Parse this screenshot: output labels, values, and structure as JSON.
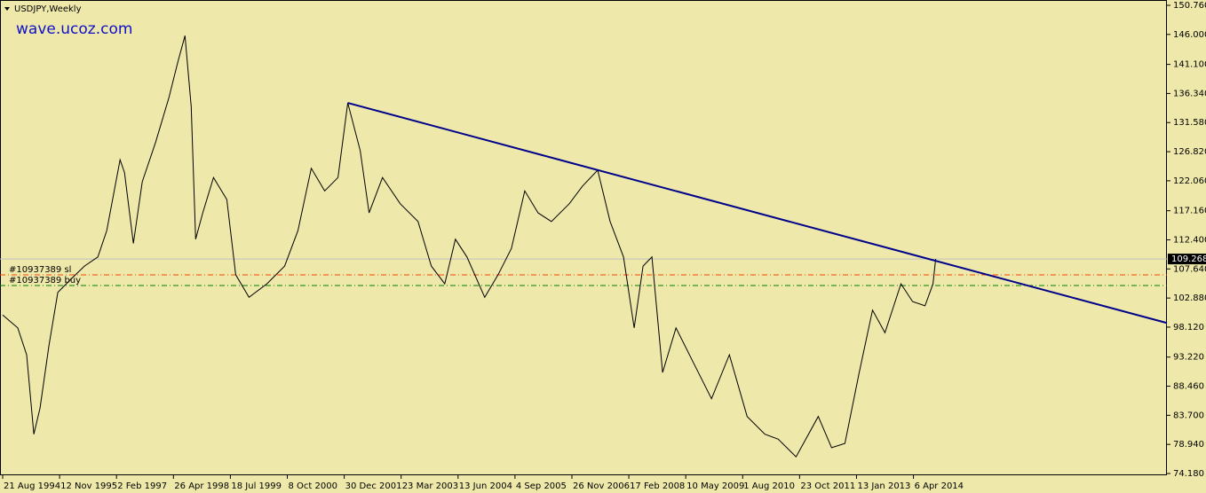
{
  "chart_data": {
    "type": "line",
    "title": "USDJPY,Weekly",
    "watermark": "wave.ucoz.com",
    "color": "#000000",
    "x": [
      "1994-08-21",
      "1994-12-18",
      "1995-02-26",
      "1995-04-23",
      "1995-06-11",
      "1995-08-20",
      "1995-10-29",
      "1996-02-11",
      "1996-05-26",
      "1996-09-08",
      "1996-11-17",
      "1997-03-02",
      "1997-04-06",
      "1997-06-15",
      "1997-08-24",
      "1997-12-07",
      "1998-03-22",
      "1998-05-31",
      "1998-07-26",
      "1998-09-13",
      "1998-10-18",
      "1998-12-13",
      "1999-03-07",
      "1999-06-20",
      "1999-08-29",
      "1999-12-12",
      "2000-04-30",
      "2000-09-17",
      "2000-12-31",
      "2001-04-15",
      "2001-07-29",
      "2001-11-11",
      "2002-01-27",
      "2002-05-05",
      "2002-07-14",
      "2002-10-27",
      "2003-03-16",
      "2003-08-03",
      "2003-11-16",
      "2004-02-29",
      "2004-05-23",
      "2004-08-22",
      "2005-01-09",
      "2005-04-24",
      "2005-08-07",
      "2005-11-20",
      "2006-03-05",
      "2006-06-18",
      "2006-11-05",
      "2007-02-18",
      "2007-06-17",
      "2007-09-23",
      "2008-01-06",
      "2008-03-30",
      "2008-06-08",
      "2008-08-17",
      "2008-11-09",
      "2009-02-22",
      "2009-07-12",
      "2009-11-29",
      "2010-04-18",
      "2010-09-05",
      "2011-01-23",
      "2011-05-08",
      "2011-09-25",
      "2012-03-18",
      "2012-07-01",
      "2012-10-14",
      "2013-02-03",
      "2013-05-19",
      "2013-08-25",
      "2013-12-29",
      "2014-03-30",
      "2014-07-06",
      "2014-09-07",
      "2014-09-28"
    ],
    "values": [
      100.1,
      98.0,
      93.6,
      80.6,
      84.9,
      95.1,
      103.8,
      106.0,
      108.1,
      109.6,
      113.9,
      125.5,
      123.4,
      111.8,
      121.9,
      128.4,
      135.7,
      141.5,
      145.8,
      134.2,
      112.5,
      116.8,
      122.6,
      119.0,
      106.7,
      103.0,
      105.2,
      108.1,
      113.9,
      124.1,
      120.4,
      122.6,
      134.8,
      127.0,
      116.8,
      122.6,
      118.3,
      115.4,
      108.1,
      105.2,
      112.5,
      109.6,
      103.0,
      106.7,
      111.0,
      120.4,
      116.8,
      115.4,
      118.3,
      121.2,
      123.8,
      115.4,
      109.6,
      98.0,
      108.1,
      109.6,
      90.7,
      98.0,
      92.2,
      86.4,
      93.6,
      83.5,
      80.6,
      79.8,
      76.9,
      83.5,
      78.4,
      79.1,
      90.7,
      100.9,
      97.2,
      105.2,
      102.3,
      101.6,
      105.2,
      109.268
    ],
    "xlim": [
      "1994-07-31",
      "2019-09-22"
    ],
    "xticks": [
      {
        "value": "1994-08-21",
        "label": "21 Aug 1994"
      },
      {
        "value": "1995-11-12",
        "label": "12 Nov 1995"
      },
      {
        "value": "1997-02-02",
        "label": "2 Feb 1997"
      },
      {
        "value": "1998-04-26",
        "label": "26 Apr 1998"
      },
      {
        "value": "1999-07-18",
        "label": "18 Jul 1999"
      },
      {
        "value": "2000-10-08",
        "label": "8 Oct 2000"
      },
      {
        "value": "2001-12-30",
        "label": "30 Dec 2001"
      },
      {
        "value": "2003-03-23",
        "label": "23 Mar 2003"
      },
      {
        "value": "2004-06-13",
        "label": "13 Jun 2004"
      },
      {
        "value": "2005-09-04",
        "label": "4 Sep 2005"
      },
      {
        "value": "2006-11-26",
        "label": "26 Nov 2006"
      },
      {
        "value": "2008-02-17",
        "label": "17 Feb 2008"
      },
      {
        "value": "2009-05-10",
        "label": "10 May 2009"
      },
      {
        "value": "2010-08-01",
        "label": "1 Aug 2010"
      },
      {
        "value": "2011-10-23",
        "label": "23 Oct 2011"
      },
      {
        "value": "2013-01-13",
        "label": "13 Jan 2013"
      },
      {
        "value": "2014-04-06",
        "label": "6 Apr 2014"
      }
    ],
    "ylim": [
      74.18,
      150.76
    ],
    "yticks": [
      {
        "value": 150.76,
        "label": "150.760"
      },
      {
        "value": 146,
        "label": "146.000"
      },
      {
        "value": 141.1,
        "label": "141.100"
      },
      {
        "value": 136.34,
        "label": "136.340"
      },
      {
        "value": 131.58,
        "label": "131.580"
      },
      {
        "value": 126.82,
        "label": "126.820"
      },
      {
        "value": 122.06,
        "label": "122.060"
      },
      {
        "value": 117.16,
        "label": "117.160"
      },
      {
        "value": 112.4,
        "label": "112.400"
      },
      {
        "value": 107.64,
        "label": "107.640"
      },
      {
        "value": 102.88,
        "label": "102.880"
      },
      {
        "value": 98.12,
        "label": "98.120"
      },
      {
        "value": 93.22,
        "label": "93.220"
      },
      {
        "value": 88.46,
        "label": "88.460"
      },
      {
        "value": 83.7,
        "label": "83.700"
      },
      {
        "value": 78.94,
        "label": "78.940"
      },
      {
        "value": 74.18,
        "label": "74.180"
      }
    ],
    "current_price": 109.268,
    "current_price_color": "#c0c0c0",
    "orders": [
      {
        "label": "#10937389 sl",
        "value": 106.67,
        "color": "#ff4500"
      },
      {
        "label": "#10937389 buy",
        "value": 104.93,
        "color": "#008000"
      }
    ],
    "trendline": {
      "x": [
        "2002-01-27",
        "2019-09-22"
      ],
      "values": [
        134.8,
        98.8
      ],
      "color": "#00008b"
    }
  }
}
